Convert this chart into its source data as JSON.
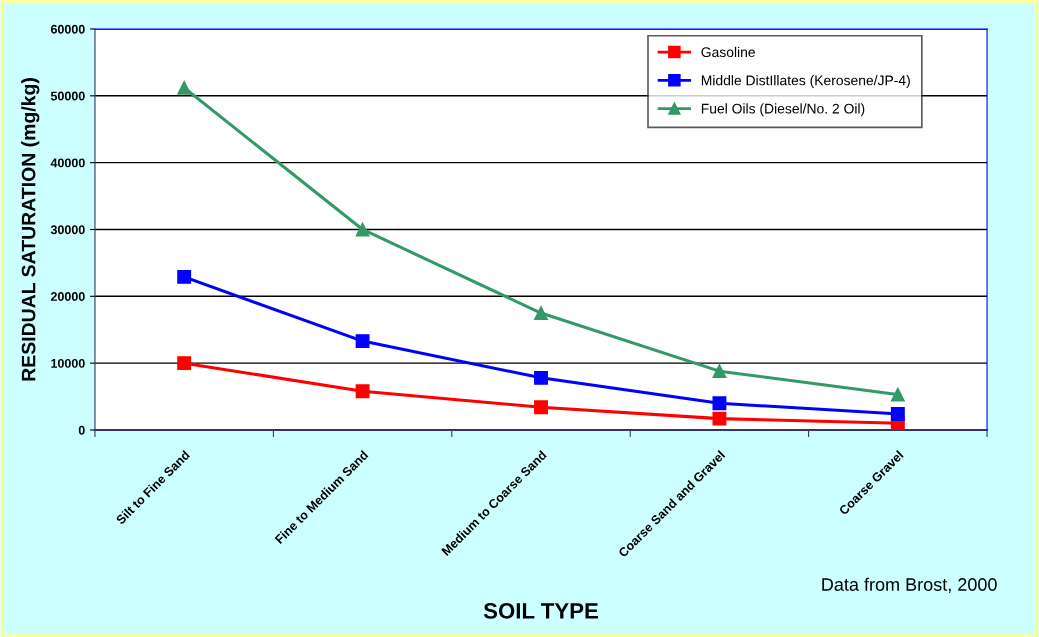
{
  "chart_data": {
    "type": "line",
    "xlabel": "SOIL TYPE",
    "ylabel": "RESIDUAL SATURATION (mg/kg)",
    "categories": [
      "Silt to Fine Sand",
      "Fine to Medium Sand",
      "Medium to Coarse Sand",
      "Coarse Sand and Gravel",
      "Coarse Gravel"
    ],
    "series": [
      {
        "name": "Gasoline",
        "color": "#ff0000",
        "marker": "square",
        "values": [
          10000,
          5800,
          3400,
          1700,
          1000
        ]
      },
      {
        "name": "Middle DistIllates (Kerosene/JP-4)",
        "color": "#0000ff",
        "marker": "square",
        "values": [
          22900,
          13300,
          7800,
          4000,
          2400
        ]
      },
      {
        "name": "Fuel Oils (Diesel/No. 2 Oil)",
        "color": "#339966",
        "marker": "triangle",
        "values": [
          51200,
          30000,
          17500,
          8800,
          5300
        ]
      }
    ],
    "ylim": [
      0,
      60000
    ],
    "yticks": [
      0,
      10000,
      20000,
      30000,
      40000,
      50000,
      60000
    ],
    "grid": "y",
    "legend": "top right",
    "line_style": "solid",
    "annotations": [
      "Data from Brost, 2000"
    ]
  }
}
